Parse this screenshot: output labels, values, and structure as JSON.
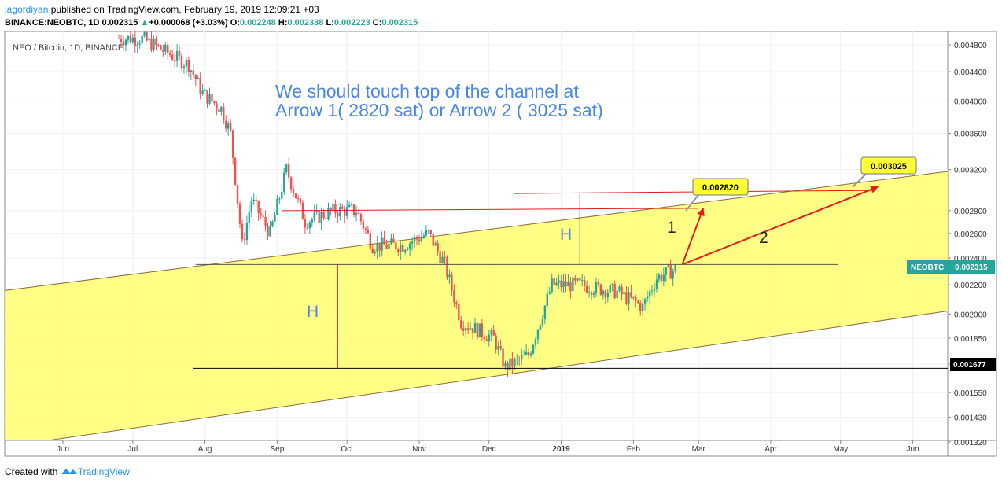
{
  "header": {
    "author": "lagordiyan",
    "published": "published on TradingView.com, February 19, 2019 12:09:21 +03",
    "symbol": "BINANCE:NEOBTC, 1D",
    "price": "0.002315",
    "change_arrow": "▲",
    "change": "+0.000068 (+3.03%)",
    "o_label": "O:",
    "o": "0.002248",
    "h_label": "H:",
    "h": "0.002338",
    "l_label": "L:",
    "l": "0.002223",
    "c_label": "C:",
    "c": "0.002315"
  },
  "legend": "NEO / Bitcoin, 1D, BINANCE",
  "annotation": {
    "line1": "We should touch top of the channel at",
    "line2": "Arrow 1( 2820 sat) or Arrow 2 ( 3025 sat)",
    "color": "#4a86e8"
  },
  "labels": {
    "h_left": "H",
    "h_right": "H",
    "arrow1": "1",
    "arrow2": "2",
    "target1": "0.002820",
    "target2": "0.003025",
    "price_tag_name": "NEOBTC",
    "price_tag_value": "0.002315",
    "support_value": "0.001677"
  },
  "colors": {
    "channel_fill": "#ffff5c",
    "up": "#26a69a",
    "down": "#ef5350",
    "arrow": "#e31c1c",
    "tag_bg": "#ffff33",
    "price_tag": "#26a69a"
  },
  "footer": {
    "created": "Created with",
    "brand": "TradingView"
  },
  "chart_data": {
    "type": "candlestick",
    "y_scale": "log",
    "ylim": [
      0.00132,
      0.0049
    ],
    "y_ticks": [
      "0.004800",
      "0.004400",
      "0.004000",
      "0.003600",
      "0.003200",
      "0.002800",
      "0.002600",
      "0.002400",
      "0.002200",
      "0.002000",
      "0.001850",
      "0.001700",
      "0.001550",
      "0.001430",
      "0.001320"
    ],
    "x_ticks": [
      "Jun",
      "Jul",
      "Aug",
      "Sep",
      "Oct",
      "Nov",
      "Dec",
      "2019",
      "Feb",
      "Mar",
      "Apr",
      "May",
      "Jun"
    ],
    "x_range": [
      "2018-05-07",
      "2019-06-16"
    ],
    "series_close_path": [
      {
        "date": "2018-06-25",
        "v": 0.0049
      },
      {
        "date": "2018-07-05",
        "v": 0.0049
      },
      {
        "date": "2018-07-25",
        "v": 0.0045
      },
      {
        "date": "2018-07-31",
        "v": 0.0041
      },
      {
        "date": "2018-08-08",
        "v": 0.0039
      },
      {
        "date": "2018-08-12",
        "v": 0.0036
      },
      {
        "date": "2018-08-17",
        "v": 0.0025
      },
      {
        "date": "2018-08-21",
        "v": 0.0029
      },
      {
        "date": "2018-08-29",
        "v": 0.0026
      },
      {
        "date": "2018-09-05",
        "v": 0.0032
      },
      {
        "date": "2018-09-13",
        "v": 0.0027
      },
      {
        "date": "2018-09-25",
        "v": 0.0028
      },
      {
        "date": "2018-10-05",
        "v": 0.0028
      },
      {
        "date": "2018-10-12",
        "v": 0.0025
      },
      {
        "date": "2018-10-25",
        "v": 0.0025
      },
      {
        "date": "2018-11-05",
        "v": 0.0026
      },
      {
        "date": "2018-11-12",
        "v": 0.00235
      },
      {
        "date": "2018-11-19",
        "v": 0.00195
      },
      {
        "date": "2018-12-03",
        "v": 0.00185
      },
      {
        "date": "2018-12-08",
        "v": 0.00168
      },
      {
        "date": "2018-12-18",
        "v": 0.00175
      },
      {
        "date": "2018-12-28",
        "v": 0.0022
      },
      {
        "date": "2019-01-09",
        "v": 0.0022
      },
      {
        "date": "2019-01-25",
        "v": 0.00215
      },
      {
        "date": "2019-02-05",
        "v": 0.00205
      },
      {
        "date": "2019-02-11",
        "v": 0.00225
      },
      {
        "date": "2019-02-19",
        "v": 0.002315
      }
    ],
    "channel": {
      "upper": [
        {
          "date": "2018-05-07",
          "v": 0.00216
        },
        {
          "date": "2019-06-16",
          "v": 0.00318
        }
      ],
      "lower": [
        {
          "date": "2018-05-07",
          "v": 0.0013
        },
        {
          "date": "2019-06-16",
          "v": 0.00202
        }
      ]
    },
    "horizontal_lines": [
      {
        "name": "resistance",
        "v": 0.00235
      },
      {
        "name": "support",
        "v": 0.001677
      },
      {
        "name": "red-upper",
        "v": 0.0028
      },
      {
        "name": "red-top",
        "v": 0.00296
      }
    ],
    "arrows": [
      {
        "name": "1",
        "from": {
          "date": "2019-02-22",
          "v": 0.00235
        },
        "to": {
          "date": "2019-03-03",
          "v": 0.00282
        },
        "target": "0.002820"
      },
      {
        "name": "2",
        "from": {
          "date": "2019-02-22",
          "v": 0.00235
        },
        "to": {
          "date": "2019-05-17",
          "v": 0.003025
        },
        "target": "0.003025"
      }
    ]
  }
}
